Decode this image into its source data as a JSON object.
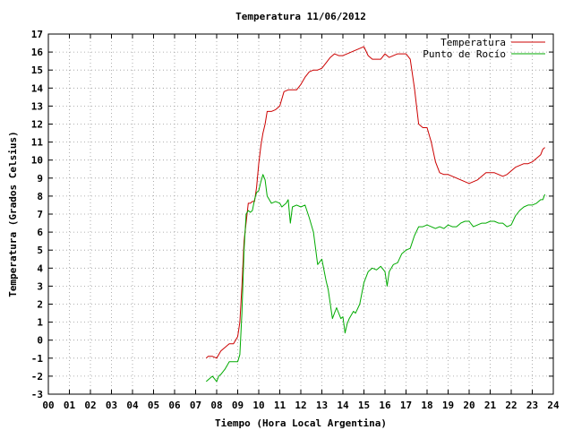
{
  "chart_data": {
    "type": "line",
    "title": "Temperatura 11/06/2012",
    "xlabel": "Tiempo (Hora Local Argentina)",
    "ylabel": "Temperatura (Grados Celsius)",
    "xlim": [
      0,
      24
    ],
    "ylim": [
      -3,
      17
    ],
    "x_ticks": [
      "00",
      "01",
      "02",
      "03",
      "04",
      "05",
      "06",
      "07",
      "08",
      "09",
      "10",
      "11",
      "12",
      "13",
      "14",
      "15",
      "16",
      "17",
      "18",
      "19",
      "20",
      "21",
      "22",
      "23",
      "24"
    ],
    "y_ticks": [
      "-3",
      "-2",
      "-1",
      "0",
      "1",
      "2",
      "3",
      "4",
      "5",
      "6",
      "7",
      "8",
      "9",
      "10",
      "11",
      "12",
      "13",
      "14",
      "15",
      "16",
      "17"
    ],
    "grid": true,
    "legend_position": "top-right",
    "colors": {
      "temperature": "#cc0000",
      "dewpoint": "#00aa00"
    },
    "series": [
      {
        "name": "Temperatura",
        "x": [
          7.5,
          7.6,
          7.8,
          8.0,
          8.2,
          8.4,
          8.6,
          8.8,
          9.0,
          9.1,
          9.2,
          9.3,
          9.5,
          9.6,
          9.7,
          9.8,
          9.9,
          10.0,
          10.1,
          10.2,
          10.3,
          10.4,
          10.5,
          10.6,
          10.8,
          11.0,
          11.2,
          11.4,
          11.6,
          11.8,
          12.0,
          12.2,
          12.4,
          12.6,
          12.8,
          13.0,
          13.2,
          13.4,
          13.6,
          13.8,
          14.0,
          14.2,
          14.4,
          14.6,
          14.8,
          15.0,
          15.2,
          15.4,
          15.6,
          15.8,
          16.0,
          16.2,
          16.4,
          16.6,
          16.8,
          17.0,
          17.2,
          17.4,
          17.6,
          17.8,
          18.0,
          18.2,
          18.4,
          18.6,
          18.8,
          19.0,
          19.2,
          19.4,
          19.6,
          19.8,
          20.0,
          20.2,
          20.4,
          20.6,
          20.8,
          21.0,
          21.2,
          21.4,
          21.6,
          21.8,
          22.0,
          22.2,
          22.4,
          22.6,
          22.8,
          23.0,
          23.2,
          23.4,
          23.5,
          23.6
        ],
        "values": [
          -1.0,
          -0.9,
          -0.9,
          -1.0,
          -0.6,
          -0.4,
          -0.2,
          -0.2,
          0.2,
          1.0,
          3.0,
          5.5,
          7.6,
          7.6,
          7.7,
          7.7,
          8.5,
          9.8,
          10.8,
          11.5,
          12.0,
          12.7,
          12.7,
          12.7,
          12.8,
          13.0,
          13.8,
          13.9,
          13.9,
          13.9,
          14.2,
          14.6,
          14.9,
          15.0,
          15.0,
          15.1,
          15.4,
          15.7,
          15.9,
          15.8,
          15.8,
          15.9,
          16.0,
          16.1,
          16.2,
          16.3,
          15.8,
          15.6,
          15.6,
          15.6,
          15.9,
          15.7,
          15.8,
          15.9,
          15.9,
          15.9,
          15.6,
          14.0,
          12.0,
          11.8,
          11.8,
          11.0,
          9.9,
          9.3,
          9.2,
          9.2,
          9.1,
          9.0,
          8.9,
          8.8,
          8.7,
          8.8,
          8.9,
          9.1,
          9.3,
          9.3,
          9.3,
          9.2,
          9.1,
          9.2,
          9.4,
          9.6,
          9.7,
          9.8,
          9.8,
          9.9,
          10.1,
          10.3,
          10.6,
          10.7
        ]
      },
      {
        "name": "Punto de Rocío",
        "x": [
          7.5,
          7.6,
          7.8,
          8.0,
          8.1,
          8.2,
          8.4,
          8.6,
          8.8,
          9.0,
          9.1,
          9.2,
          9.3,
          9.4,
          9.5,
          9.6,
          9.7,
          9.8,
          9.9,
          10.0,
          10.1,
          10.2,
          10.3,
          10.4,
          10.5,
          10.6,
          10.8,
          11.0,
          11.1,
          11.2,
          11.3,
          11.4,
          11.5,
          11.6,
          11.8,
          12.0,
          12.2,
          12.4,
          12.6,
          12.8,
          13.0,
          13.2,
          13.3,
          13.5,
          13.7,
          13.9,
          14.0,
          14.1,
          14.2,
          14.3,
          14.4,
          14.5,
          14.6,
          14.8,
          15.0,
          15.2,
          15.4,
          15.6,
          15.8,
          16.0,
          16.1,
          16.2,
          16.4,
          16.6,
          16.8,
          17.0,
          17.2,
          17.4,
          17.6,
          17.8,
          18.0,
          18.2,
          18.4,
          18.6,
          18.8,
          19.0,
          19.2,
          19.4,
          19.6,
          19.8,
          20.0,
          20.2,
          20.4,
          20.6,
          20.8,
          21.0,
          21.2,
          21.4,
          21.6,
          21.8,
          22.0,
          22.2,
          22.4,
          22.6,
          22.8,
          23.0,
          23.2,
          23.4,
          23.5,
          23.6
        ],
        "values": [
          -2.3,
          -2.2,
          -2.0,
          -2.3,
          -2.0,
          -1.9,
          -1.6,
          -1.2,
          -1.2,
          -1.2,
          -0.8,
          1.5,
          5.0,
          7.0,
          7.2,
          7.1,
          7.2,
          7.8,
          8.2,
          8.3,
          8.8,
          9.2,
          8.9,
          8.0,
          7.8,
          7.6,
          7.7,
          7.6,
          7.4,
          7.5,
          7.6,
          7.8,
          6.5,
          7.4,
          7.5,
          7.4,
          7.5,
          6.8,
          6.0,
          4.2,
          4.5,
          3.3,
          2.8,
          1.2,
          1.8,
          1.2,
          1.3,
          0.4,
          0.9,
          1.2,
          1.4,
          1.6,
          1.5,
          2.0,
          3.2,
          3.8,
          4.0,
          3.9,
          4.1,
          3.8,
          3.0,
          3.8,
          4.2,
          4.3,
          4.8,
          5.0,
          5.1,
          5.8,
          6.3,
          6.3,
          6.4,
          6.3,
          6.2,
          6.3,
          6.2,
          6.4,
          6.3,
          6.3,
          6.5,
          6.6,
          6.6,
          6.3,
          6.4,
          6.5,
          6.5,
          6.6,
          6.6,
          6.5,
          6.5,
          6.3,
          6.4,
          6.9,
          7.2,
          7.4,
          7.5,
          7.5,
          7.6,
          7.8,
          7.8,
          8.1
        ]
      }
    ]
  }
}
